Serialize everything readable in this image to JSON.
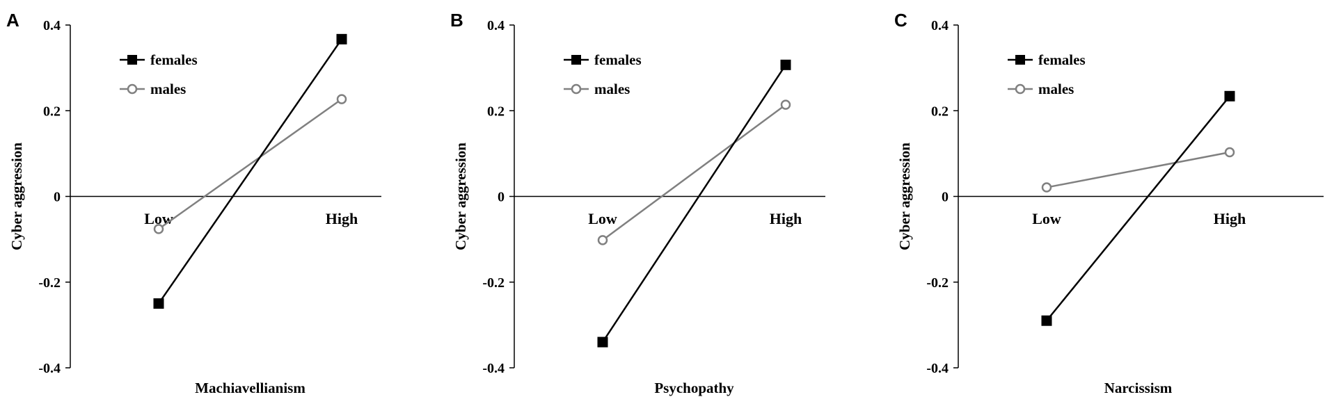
{
  "colors": {
    "females": "#000000",
    "males": "#808080",
    "axis": "#000000"
  },
  "chart_data": [
    {
      "type": "line",
      "panel": "A",
      "xlabel": "Machiavellianism",
      "ylabel": "Cyber aggression",
      "categories": [
        "Low",
        "High"
      ],
      "ylim": [
        -0.4,
        0.4
      ],
      "yticks": [
        "0.4",
        "0.2",
        "0",
        "-0.2",
        "-0.4"
      ],
      "legend_position": "top-left",
      "series": [
        {
          "name": "females",
          "marker": "filled-square",
          "values": [
            -0.25,
            0.367
          ]
        },
        {
          "name": "males",
          "marker": "open-circle",
          "values": [
            -0.076,
            0.227
          ]
        }
      ]
    },
    {
      "type": "line",
      "panel": "B",
      "xlabel": "Psychopathy",
      "ylabel": "Cyber aggression",
      "categories": [
        "Low",
        "High"
      ],
      "ylim": [
        -0.4,
        0.4
      ],
      "yticks": [
        "0.4",
        "0.2",
        "0",
        "-0.2",
        "-0.4"
      ],
      "legend_position": "top-left",
      "series": [
        {
          "name": "females",
          "marker": "filled-square",
          "values": [
            -0.34,
            0.307
          ]
        },
        {
          "name": "males",
          "marker": "open-circle",
          "values": [
            -0.102,
            0.214
          ]
        }
      ]
    },
    {
      "type": "line",
      "panel": "C",
      "xlabel": "Narcissism",
      "ylabel": "Cyber aggression",
      "categories": [
        "Low",
        "High"
      ],
      "ylim": [
        -0.4,
        0.4
      ],
      "yticks": [
        "0.4",
        "0.2",
        "0",
        "-0.2",
        "-0.4"
      ],
      "legend_position": "top-left",
      "series": [
        {
          "name": "females",
          "marker": "filled-square",
          "values": [
            -0.29,
            0.234
          ]
        },
        {
          "name": "males",
          "marker": "open-circle",
          "values": [
            0.021,
            0.103
          ]
        }
      ]
    }
  ]
}
